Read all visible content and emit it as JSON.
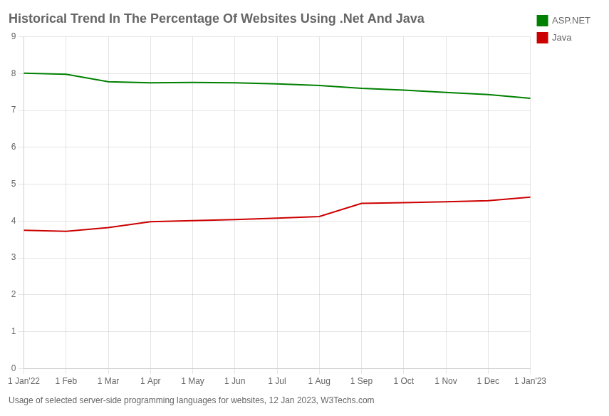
{
  "chart_data": {
    "type": "line",
    "title": "Historical Trend In The Percentage Of Websites Using .Net And Java",
    "subtitle": "Usage of selected server-side programming languages for websites, 12 Jan 2023, W3Techs.com",
    "categories": [
      "1 Jan'22",
      "1 Feb",
      "1 Mar",
      "1 Apr",
      "1 May",
      "1 Jun",
      "1 Jul",
      "1 Aug",
      "1 Sep",
      "1 Oct",
      "1 Nov",
      "1 Dec",
      "1 Jan'23"
    ],
    "series": [
      {
        "name": "ASP.NET",
        "color": "#008000",
        "values": [
          8.01,
          7.98,
          7.78,
          7.75,
          7.76,
          7.75,
          7.72,
          7.68,
          7.6,
          7.55,
          7.49,
          7.43,
          7.33
        ]
      },
      {
        "name": "Java",
        "color": "#cc0000",
        "values": [
          3.75,
          3.72,
          3.82,
          3.98,
          4.01,
          4.04,
          4.08,
          4.12,
          4.48,
          4.5,
          4.52,
          4.55,
          4.65
        ]
      }
    ],
    "ylim": [
      0,
      9
    ],
    "yticks": [
      0,
      1,
      2,
      3,
      4,
      5,
      6,
      7,
      8,
      9
    ],
    "grid": true,
    "legend": "right"
  }
}
